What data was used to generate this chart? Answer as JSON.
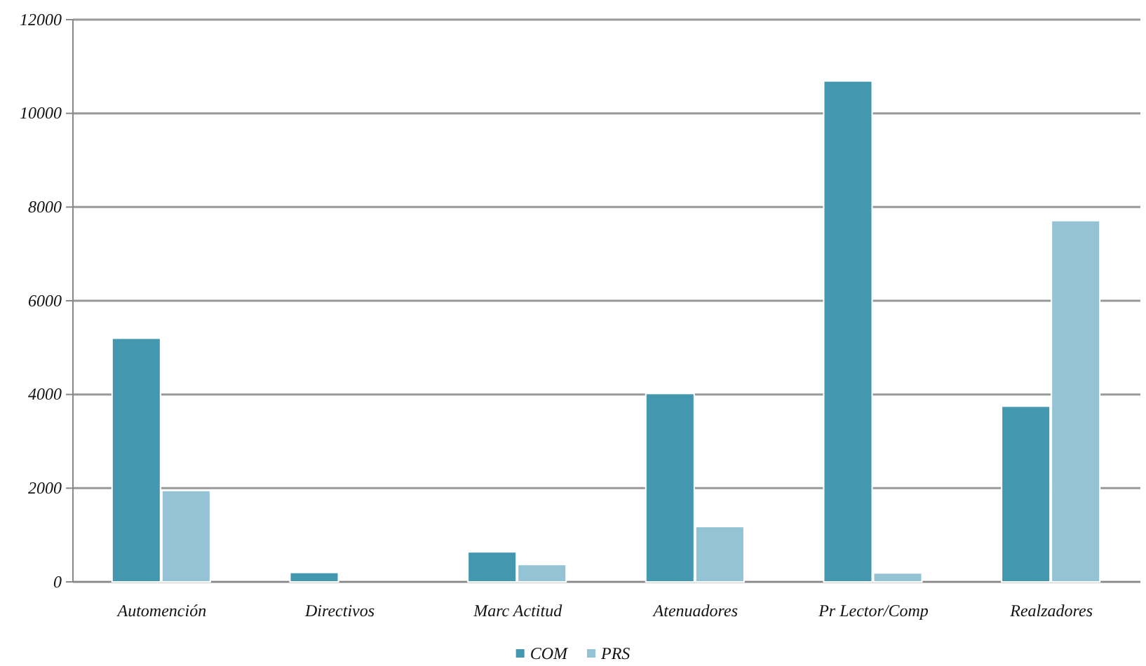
{
  "chart_data": {
    "type": "bar",
    "categories": [
      "Automención",
      "Directivos",
      "Marc Actitud",
      "Atenuadores",
      "Pr Lector/Comp",
      "Realzadores"
    ],
    "series": [
      {
        "name": "COM",
        "color": "#4398b0",
        "values": [
          5200,
          200,
          640,
          4020,
          10690,
          3750
        ]
      },
      {
        "name": "PRS",
        "color": "#93c3d5",
        "values": [
          1950,
          0,
          370,
          1180,
          190,
          7710
        ]
      }
    ],
    "ylim": [
      0,
      12000
    ],
    "yticks": [
      0,
      2000,
      4000,
      6000,
      8000,
      10000,
      12000
    ],
    "grid": "y",
    "legend": "bottom"
  }
}
